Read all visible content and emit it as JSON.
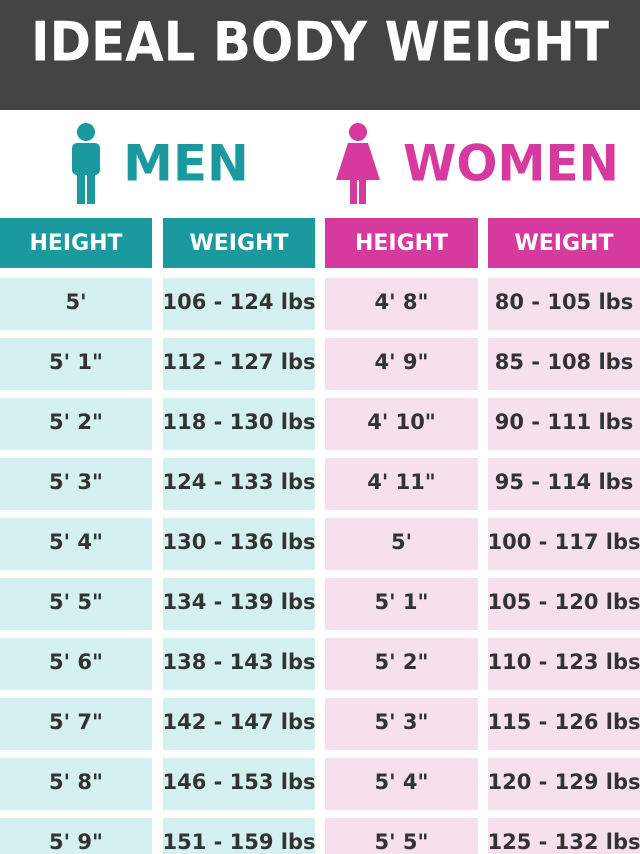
{
  "header": {
    "title": "IDEAL BODY WEIGHT"
  },
  "groups": {
    "men": "MEN",
    "women": "WOMEN"
  },
  "table": {
    "headers": [
      "HEIGHT",
      "WEIGHT",
      "HEIGHT",
      "WEIGHT"
    ],
    "rows": [
      [
        "5'",
        "106 - 124 lbs",
        "4' 8\"",
        "80 - 105 lbs"
      ],
      [
        "5' 1\"",
        "112 - 127 lbs",
        "4' 9\"",
        "85 - 108 lbs"
      ],
      [
        "5' 2\"",
        "118 - 130 lbs",
        "4' 10\"",
        "90 - 111 lbs"
      ],
      [
        "5' 3\"",
        "124 - 133 lbs",
        "4' 11\"",
        "95 - 114 lbs"
      ],
      [
        "5' 4\"",
        "130 - 136 lbs",
        "5'",
        "100 - 117 lbs"
      ],
      [
        "5' 5\"",
        "134 - 139 lbs",
        "5' 1\"",
        "105 - 120 lbs"
      ],
      [
        "5' 6\"",
        "138 - 143 lbs",
        "5' 2\"",
        "110 - 123 lbs"
      ],
      [
        "5' 7\"",
        "142 - 147 lbs",
        "5' 3\"",
        "115 - 126 lbs"
      ],
      [
        "5' 8\"",
        "146 - 153 lbs",
        "5' 4\"",
        "120 - 129 lbs"
      ],
      [
        "5' 9\"",
        "151 - 159 lbs",
        "5' 5\"",
        "125 - 132 lbs"
      ]
    ]
  }
}
